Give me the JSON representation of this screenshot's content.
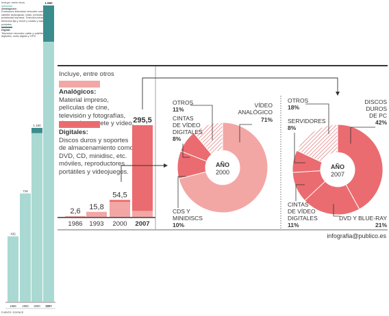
{
  "colors": {
    "analog": "#f3a7a5",
    "digital": "#ea6c70",
    "others_hatch": "#e99a9a",
    "teal_light": "#a9d9d2",
    "teal_dark": "#3a8d8c",
    "rule": "#444444"
  },
  "legend": {
    "intro": "Incluye, entre otros",
    "analog_title": "Analógicos:",
    "analog_body": "Material impreso, películas de cine, televisión y fotografías, cintas de cassete y vídeo.",
    "digital_title": "Digitales:",
    "digital_body": "Discos duros y soportes de almacenamiento como DVD, CD, minidisc, etc. móviles, reproductores portátiles y videojuegos."
  },
  "mini_legend": {
    "intro": "Incluye, entre otros",
    "analog_title": "Analógicos:",
    "analog_body": "Emisiones televisión terrestre cable y satélite analógicas, radio, periódicos y publicidad impresa. Telecomunicaciones: telefonía fija y móvil y cartas y tarjetas postales",
    "digital_title": "Digital:",
    "digital_body": "Televisión terrestre cable y satélite digitales, radio digital y GPS"
  },
  "mini_chart_footer": "FUENTE: SCIENCE",
  "credit": "infografia@publico.es",
  "chart_data": [
    {
      "type": "bar",
      "id": "left-stacked",
      "categories": [
        "1986",
        "1993",
        "2000",
        "2007"
      ],
      "value_labels": [
        "432",
        "716",
        "1.150",
        "1.960"
      ],
      "values": [
        432,
        716,
        1150,
        1960
      ],
      "series": [
        {
          "name": "Analógicos",
          "values": [
            432,
            716,
            1115,
            1720
          ]
        },
        {
          "name": "Digital",
          "values": [
            0,
            0,
            35,
            240
          ]
        }
      ],
      "highlight_category": "2007"
    },
    {
      "type": "bar",
      "id": "storage-bars",
      "categories": [
        "1986",
        "1993",
        "2000",
        "2007"
      ],
      "value_labels": [
        "2,6",
        "15,8",
        "54,5",
        "295,5"
      ],
      "values": [
        2.6,
        15.8,
        54.5,
        295.5
      ],
      "series": [
        {
          "name": "Analógicos",
          "values": [
            2.6,
            15.0,
            48.0,
            19.0
          ]
        },
        {
          "name": "Digitales",
          "values": [
            0,
            0.8,
            6.5,
            276.5
          ]
        }
      ],
      "highlight_category": "2007"
    },
    {
      "type": "pie",
      "id": "donut-2000",
      "center_label": [
        "AÑO",
        "2000"
      ],
      "slices": [
        {
          "label": "VÍDEO ANALÓGICO",
          "value": 71,
          "pct_label": "71%",
          "kind": "analog"
        },
        {
          "label": "CDS Y MINIDISCS",
          "value": 10,
          "pct_label": "10%",
          "kind": "digital"
        },
        {
          "label": "CINTAS DE VÍDEO DIGITALES",
          "value": 8,
          "pct_label": "8%",
          "kind": "digital"
        },
        {
          "label": "OTROS",
          "value": 11,
          "pct_label": "11%",
          "kind": "others"
        }
      ]
    },
    {
      "type": "pie",
      "id": "donut-2007",
      "center_label": [
        "AÑO",
        "2007"
      ],
      "slices": [
        {
          "label": "DISCOS DUROS DE PC",
          "value": 42,
          "pct_label": "42%",
          "kind": "digital"
        },
        {
          "label": "DVD Y BLUE-RAY",
          "value": 21,
          "pct_label": "21%",
          "kind": "digital"
        },
        {
          "label": "CINTAS DE VÍDEO DIGITALES",
          "value": 11,
          "pct_label": "11%",
          "kind": "digital"
        },
        {
          "label": "SERVIDORES",
          "value": 8,
          "pct_label": "8%",
          "kind": "digital"
        },
        {
          "label": "OTROS",
          "value": 18,
          "pct_label": "18%",
          "kind": "others"
        }
      ]
    }
  ]
}
